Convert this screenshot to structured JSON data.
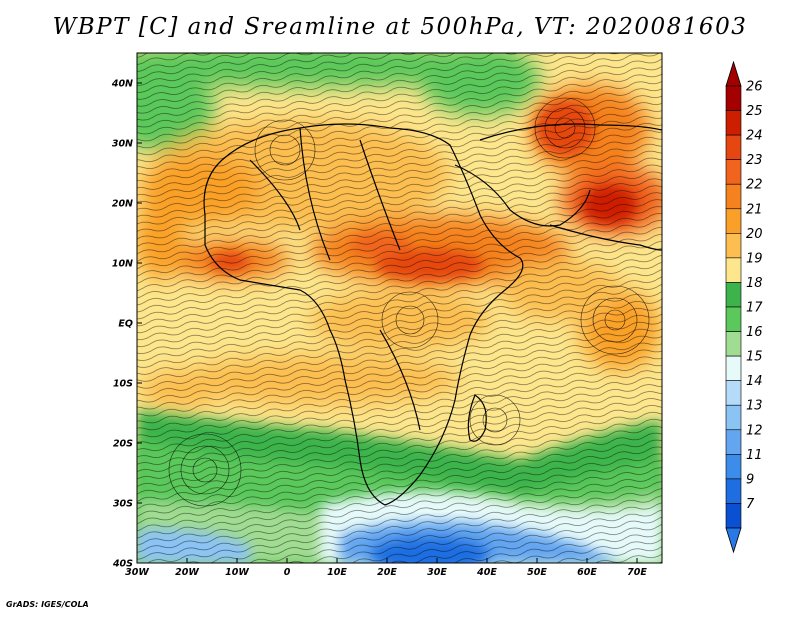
{
  "title": "WBPT [C] and Sreamline at 500hPa, VT: 2020081603",
  "credit": "GrADS: IGES/COLA",
  "map": {
    "lon_range": [
      -30,
      75
    ],
    "lat_range": [
      -40,
      45
    ],
    "lon_ticks": [
      {
        "value": -30,
        "label": "30W"
      },
      {
        "value": -20,
        "label": "20W"
      },
      {
        "value": -10,
        "label": "10W"
      },
      {
        "value": 0,
        "label": "0"
      },
      {
        "value": 10,
        "label": "10E"
      },
      {
        "value": 20,
        "label": "20E"
      },
      {
        "value": 30,
        "label": "30E"
      },
      {
        "value": 40,
        "label": "40E"
      },
      {
        "value": 50,
        "label": "50E"
      },
      {
        "value": 60,
        "label": "60E"
      },
      {
        "value": 70,
        "label": "70E"
      }
    ],
    "lat_ticks": [
      {
        "value": 40,
        "label": "40N"
      },
      {
        "value": 30,
        "label": "30N"
      },
      {
        "value": 20,
        "label": "20N"
      },
      {
        "value": 10,
        "label": "10N"
      },
      {
        "value": 0,
        "label": "EQ"
      },
      {
        "value": -10,
        "label": "10S"
      },
      {
        "value": -20,
        "label": "20S"
      },
      {
        "value": -30,
        "label": "30S"
      },
      {
        "value": -40,
        "label": "40S"
      }
    ]
  },
  "colorbar": {
    "levels": [
      {
        "label": "26",
        "color": "#a50000"
      },
      {
        "label": "25",
        "color": "#cd1e00"
      },
      {
        "label": "24",
        "color": "#e6460f"
      },
      {
        "label": "23",
        "color": "#f0641e"
      },
      {
        "label": "22",
        "color": "#f5821e"
      },
      {
        "label": "21",
        "color": "#faa028"
      },
      {
        "label": "20",
        "color": "#fcbe50"
      },
      {
        "label": "19",
        "color": "#fde68c"
      },
      {
        "label": "18",
        "color": "#3cb44b"
      },
      {
        "label": "17",
        "color": "#5ac85a"
      },
      {
        "label": "16",
        "color": "#a0dc91"
      },
      {
        "label": "15",
        "color": "#e6fafa"
      },
      {
        "label": "14",
        "color": "#b4dcfa"
      },
      {
        "label": "13",
        "color": "#8cc3f5"
      },
      {
        "label": "12",
        "color": "#64a5f0"
      },
      {
        "label": "11",
        "color": "#3c8ceb"
      },
      {
        "label": "9",
        "color": "#1e6ee1"
      },
      {
        "label": "7",
        "color": "#0a50d2"
      }
    ],
    "top_arrow_color": "#a50000",
    "bottom_arrow_color": "#2878e6"
  }
}
